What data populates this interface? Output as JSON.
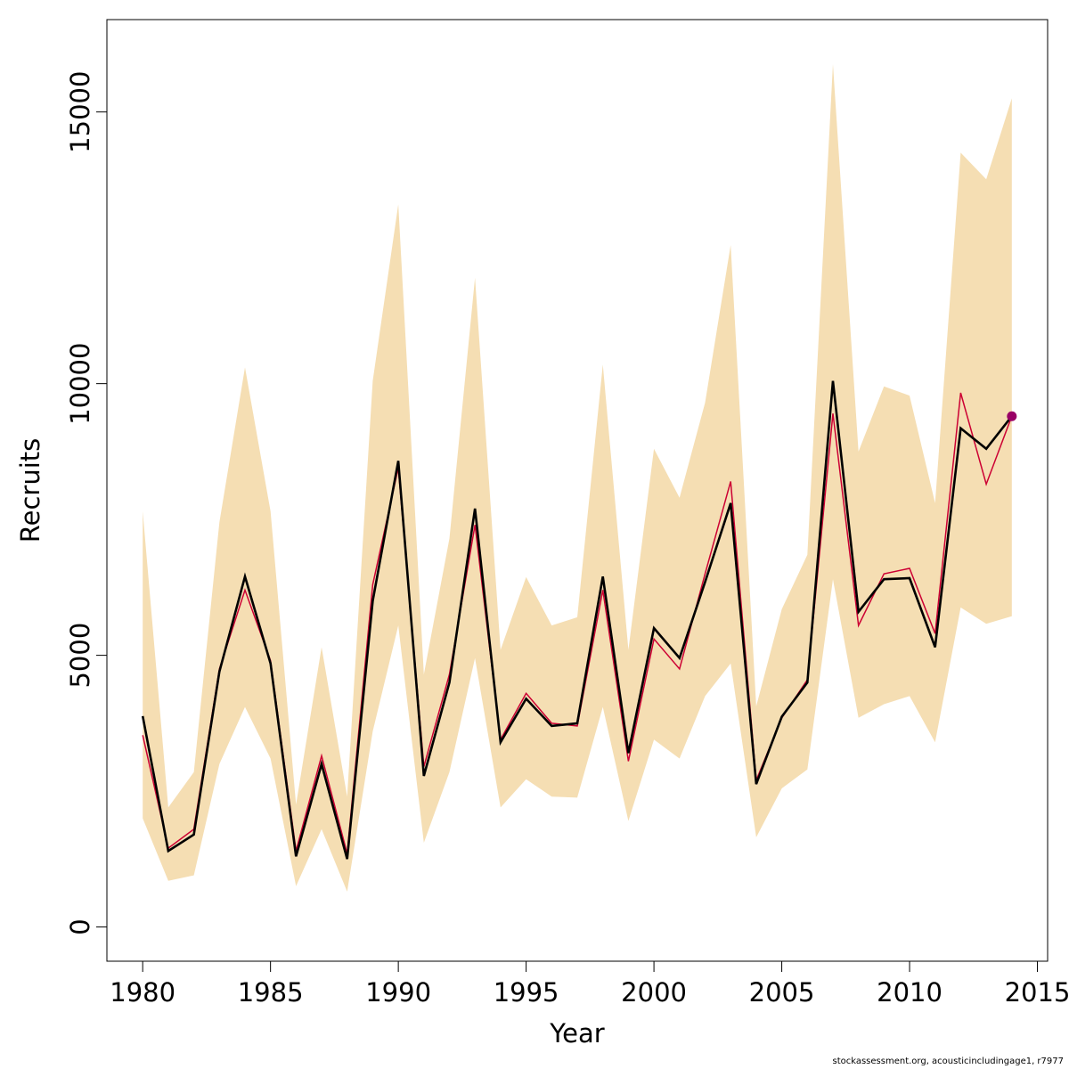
{
  "chart_data": {
    "type": "line",
    "xlabel": "Year",
    "ylabel": "Recruits",
    "xlim": [
      1978.6,
      2015.4
    ],
    "ylim": [
      -630,
      16700
    ],
    "x_ticks": [
      1980,
      1985,
      1990,
      1995,
      2000,
      2005,
      2010,
      2015
    ],
    "y_ticks": [
      0,
      5000,
      10000,
      15000
    ],
    "grid": false,
    "colors": {
      "band": "#f5deb3",
      "line": "#000000",
      "line2": "#cc0033",
      "point": "#990066"
    },
    "x": [
      1980,
      1981,
      1982,
      1983,
      1984,
      1985,
      1986,
      1987,
      1988,
      1989,
      1990,
      1991,
      1992,
      1993,
      1994,
      1995,
      1996,
      1997,
      1998,
      1999,
      2000,
      2001,
      2002,
      2003,
      2004,
      2005,
      2006,
      2007,
      2008,
      2009,
      2010,
      2011,
      2012,
      2013,
      2014
    ],
    "series": [
      {
        "values": [
          3880,
          1400,
          1700,
          4700,
          6450,
          4850,
          1300,
          3000,
          1250,
          6000,
          8580,
          2780,
          4500,
          7700,
          3400,
          4200,
          3700,
          3750,
          6450,
          3200,
          5500,
          4950,
          6350,
          7800,
          2630,
          3870,
          4500,
          10050,
          5800,
          6400,
          6420,
          5150,
          9180,
          8800,
          9400
        ]
      },
      {
        "values": [
          3530,
          1450,
          1800,
          4750,
          6200,
          4900,
          1400,
          3150,
          1350,
          6300,
          8450,
          2950,
          4650,
          7400,
          3450,
          4300,
          3750,
          3700,
          6200,
          3050,
          5300,
          4750,
          6500,
          8200,
          2700,
          3850,
          4550,
          9450,
          5550,
          6500,
          6600,
          5400,
          9830,
          8150,
          9400
        ]
      }
    ],
    "upper": [
      7650,
      2200,
      2850,
      7450,
      10300,
      7650,
      2250,
      5150,
      2400,
      10050,
      13300,
      4650,
      7150,
      11950,
      5100,
      6440,
      5550,
      5700,
      10350,
      5100,
      8800,
      7900,
      9650,
      12550,
      4060,
      5850,
      6850,
      15880,
      8750,
      9950,
      9780,
      7800,
      14250,
      13760,
      15250
    ],
    "lower": [
      2000,
      850,
      950,
      3000,
      4050,
      3100,
      750,
      1800,
      650,
      3600,
      5550,
      1550,
      2850,
      4950,
      2200,
      2720,
      2400,
      2380,
      4050,
      1950,
      3450,
      3100,
      4250,
      4850,
      1650,
      2550,
      2900,
      6400,
      3850,
      4100,
      4250,
      3400,
      5880,
      5580,
      5720
    ],
    "highlight_point": {
      "x": 2014,
      "y": 9400
    }
  },
  "footer": {
    "caption": "stockassessment.org, acousticincludingage1, r7977"
  }
}
